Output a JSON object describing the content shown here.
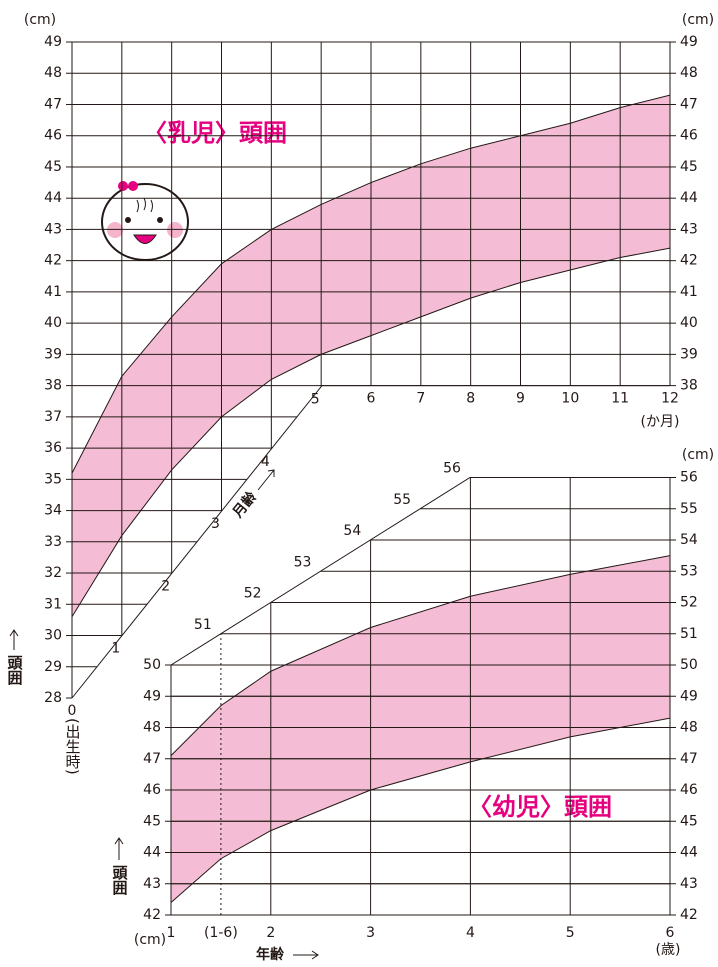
{
  "chart_data": [
    {
      "type": "band",
      "title": "〈乳児〉頭囲",
      "y_unit": "(cm)",
      "y2_unit": "(cm)",
      "x_unit": "(か月)",
      "x_label": "月齢",
      "y_label": "頭囲",
      "origin_label": "(出生時)",
      "color": "#f5bdd5",
      "x": [
        0,
        1,
        2,
        3,
        4,
        5,
        6,
        7,
        8,
        9,
        10,
        11,
        12
      ],
      "upper": [
        35.2,
        38.3,
        40.2,
        41.9,
        43.0,
        43.8,
        44.5,
        45.1,
        45.6,
        46.0,
        46.4,
        46.9,
        47.3
      ],
      "lower": [
        30.6,
        33.2,
        35.3,
        37.0,
        38.2,
        39.0,
        39.6,
        40.2,
        40.8,
        41.3,
        41.7,
        42.1,
        42.4
      ],
      "xlim": [
        0,
        12
      ],
      "xticks": [
        0,
        1,
        2,
        3,
        4,
        5,
        6,
        7,
        8,
        9,
        10,
        11,
        12
      ],
      "ylim": [
        28,
        49
      ],
      "yticks": [
        28,
        29,
        30,
        31,
        32,
        33,
        34,
        35,
        36,
        37,
        38,
        39,
        40,
        41,
        42,
        43,
        44,
        45,
        46,
        47,
        48,
        49
      ],
      "y2lim": [
        38,
        49
      ],
      "y2ticks": [
        38,
        39,
        40,
        41,
        42,
        43,
        44,
        45,
        46,
        47,
        48,
        49
      ]
    },
    {
      "type": "band",
      "title": "〈幼児〉頭囲",
      "y_unit": "(cm)",
      "y2_unit": "(cm)",
      "x_unit": "(歳)",
      "x_label": "年齢",
      "y_label": "頭囲",
      "color": "#f5bdd5",
      "x": [
        1,
        1.5,
        2,
        3,
        4,
        5,
        6
      ],
      "upper": [
        47.1,
        48.7,
        49.8,
        51.2,
        52.2,
        52.9,
        53.5
      ],
      "lower": [
        42.4,
        43.8,
        44.7,
        46.0,
        46.9,
        47.7,
        48.3
      ],
      "xlim": [
        1,
        6
      ],
      "xticks": [
        1,
        {
          "value": 1.5,
          "label": "(1-6)"
        },
        2,
        3,
        4,
        5,
        6
      ],
      "ylim": [
        42,
        50
      ],
      "yticks": [
        42,
        43,
        44,
        45,
        46,
        47,
        48,
        49,
        50
      ],
      "y2lim": [
        42,
        56
      ],
      "y2ticks": [
        42,
        43,
        44,
        45,
        46,
        47,
        48,
        49,
        50,
        51,
        52,
        53,
        54,
        55,
        56
      ],
      "diagonal_ticks": [
        51,
        52,
        53,
        54,
        55,
        56
      ]
    }
  ]
}
